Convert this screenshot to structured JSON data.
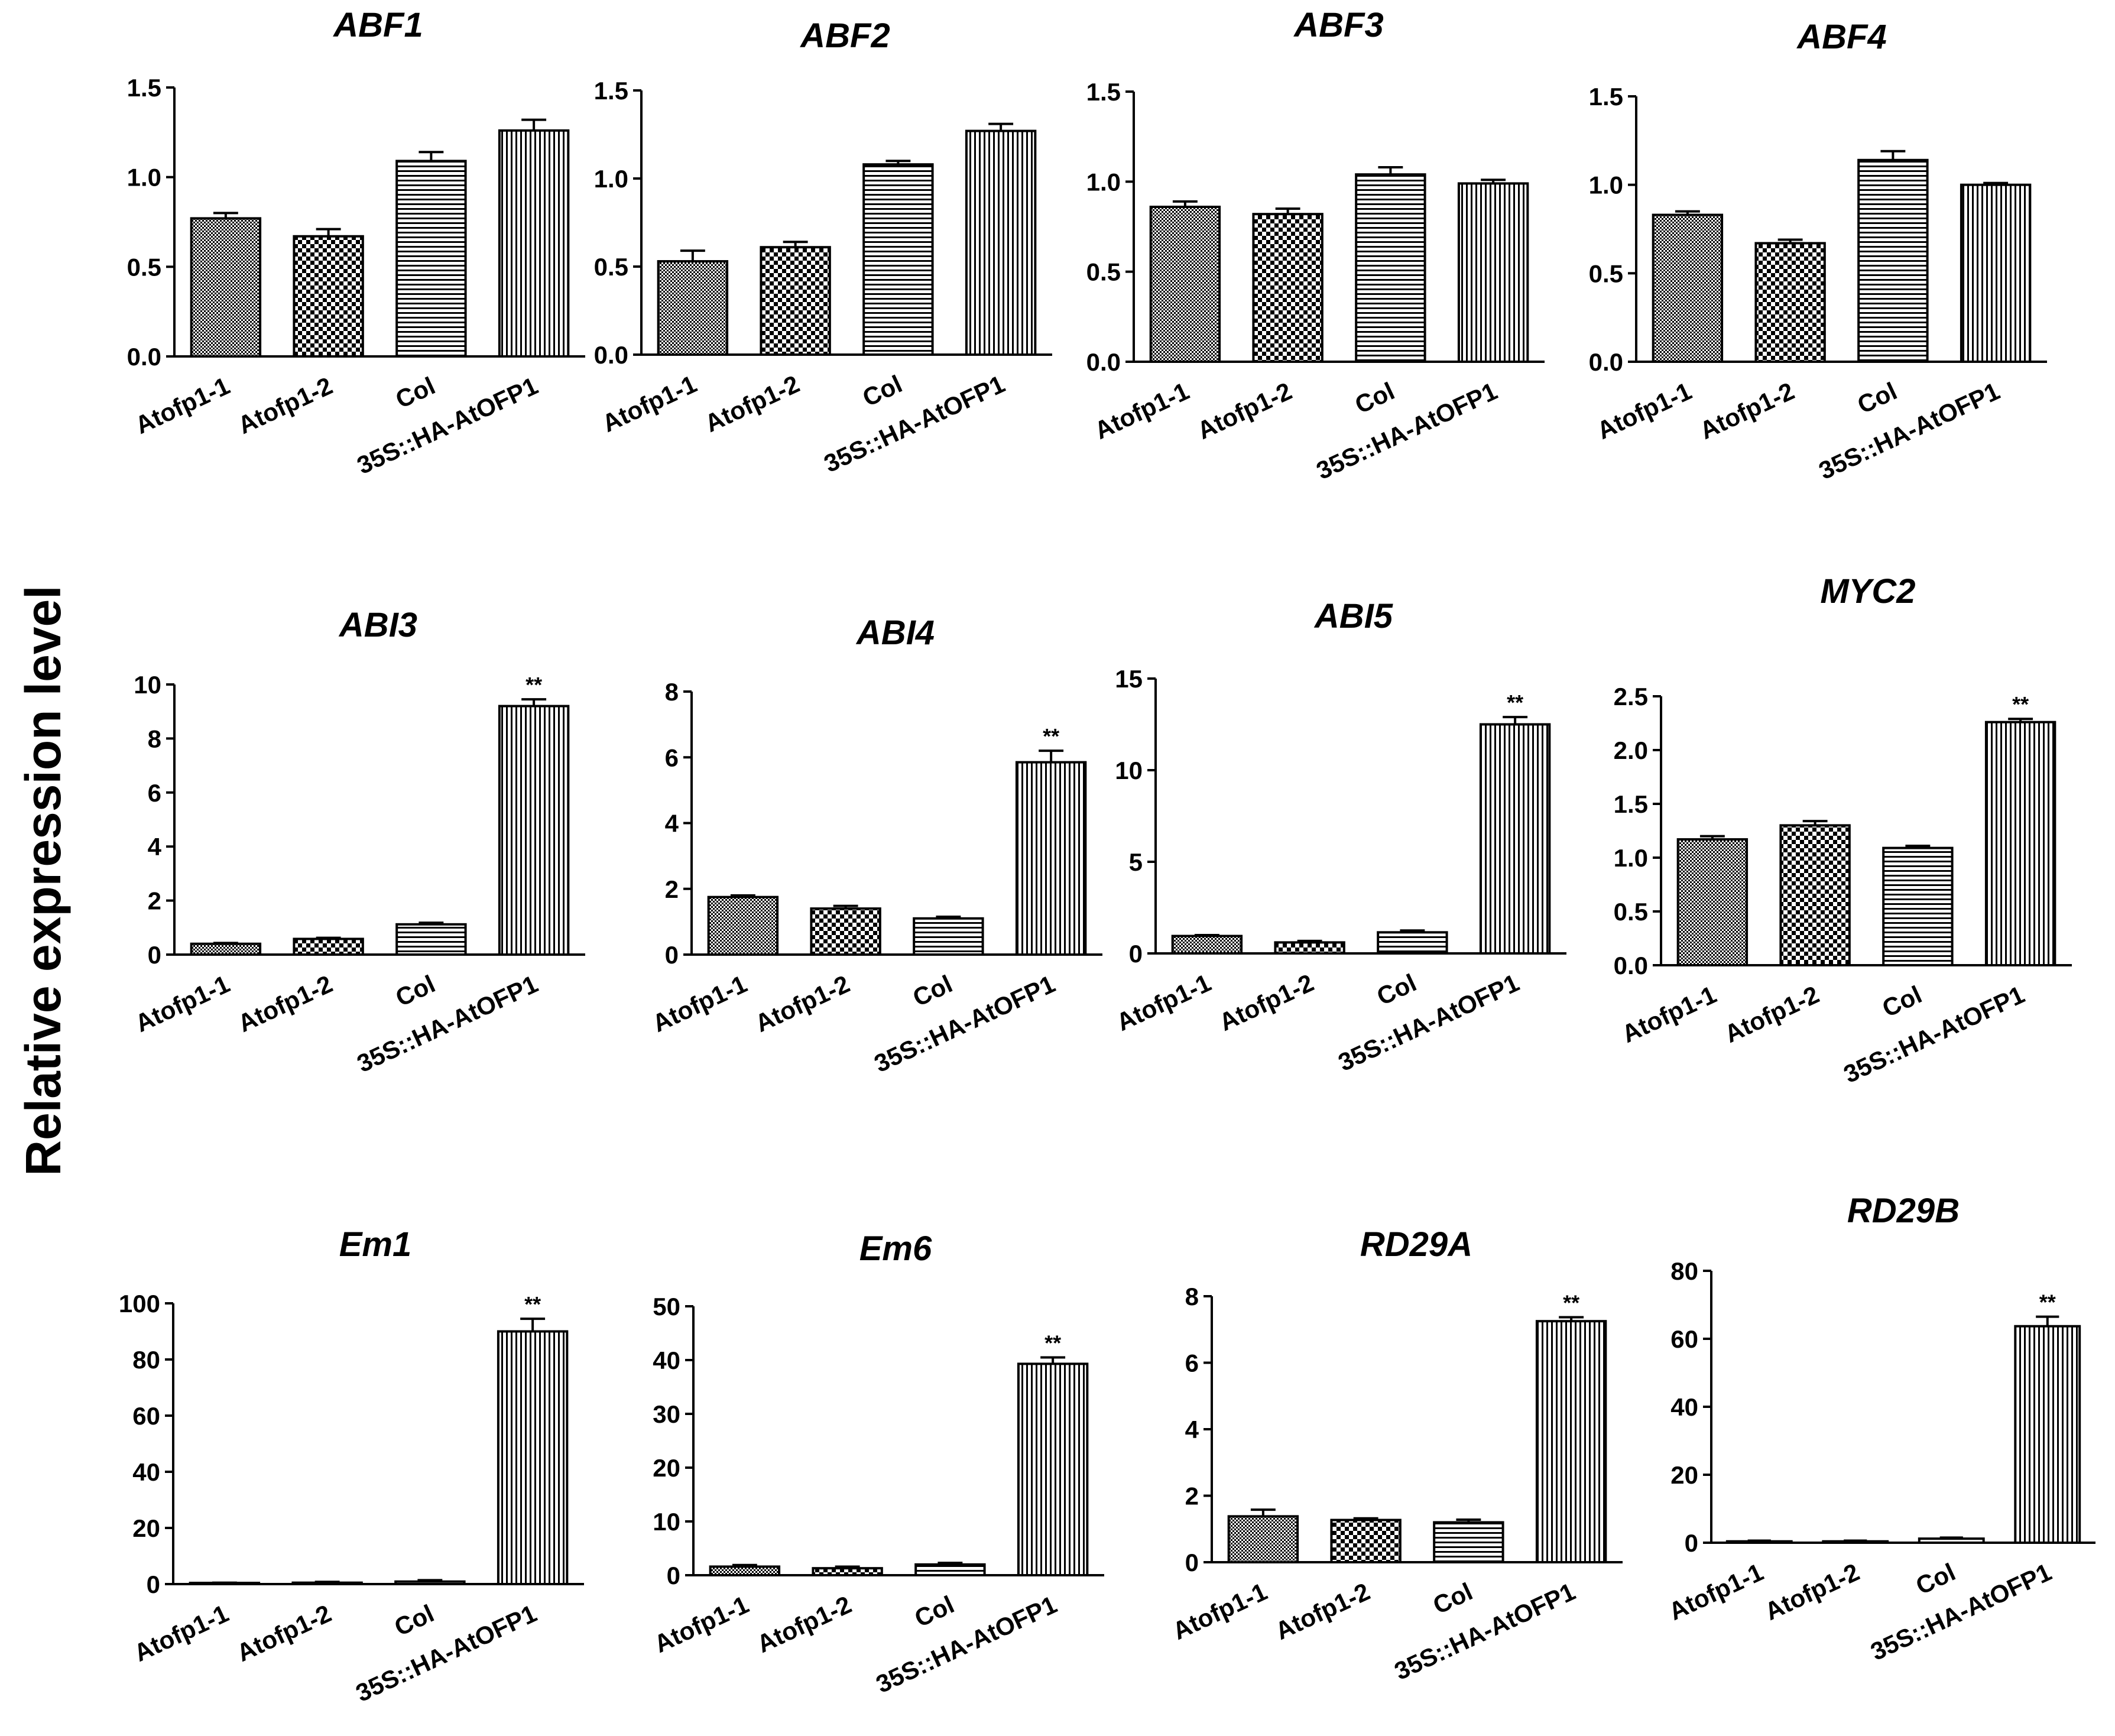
{
  "figure": {
    "ylabel": "Relative expression level",
    "categories": [
      "Atofp1-1",
      "Atofp1-2",
      "Col",
      "35S::HA-AtOFP1"
    ],
    "patterns": [
      "dense-dots",
      "checker",
      "horizontal-lines",
      "vertical-lines"
    ],
    "colors": {
      "ink": "#000000",
      "background": "#ffffff"
    }
  },
  "chart_data": [
    {
      "type": "bar",
      "title": "ABF1",
      "categories": [
        "Atofp1-1",
        "Atofp1-2",
        "Col",
        "35S::HA-AtOFP1"
      ],
      "values": [
        0.77,
        0.67,
        1.09,
        1.26
      ],
      "errors": [
        0.03,
        0.04,
        0.05,
        0.06
      ],
      "significance": [
        "",
        "",
        "",
        ""
      ],
      "ylim": [
        0,
        1.5
      ],
      "yticks": [
        0.0,
        0.5,
        1.0,
        1.5
      ],
      "ytick_labels": [
        "0.0",
        "0.5",
        "1.0",
        "1.5"
      ],
      "xlabel": "",
      "ylabel": "Relative expression level"
    },
    {
      "type": "bar",
      "title": "ABF2",
      "categories": [
        "Atofp1-1",
        "Atofp1-2",
        "Col",
        "35S::HA-AtOFP1"
      ],
      "values": [
        0.53,
        0.61,
        1.08,
        1.27
      ],
      "errors": [
        0.06,
        0.03,
        0.02,
        0.04
      ],
      "significance": [
        "",
        "",
        "",
        ""
      ],
      "ylim": [
        0,
        1.5
      ],
      "yticks": [
        0.0,
        0.5,
        1.0,
        1.5
      ],
      "ytick_labels": [
        "0.0",
        "0.5",
        "1.0",
        "1.5"
      ],
      "xlabel": "",
      "ylabel": "Relative expression level"
    },
    {
      "type": "bar",
      "title": "ABF3",
      "categories": [
        "Atofp1-1",
        "Atofp1-2",
        "Col",
        "35S::HA-AtOFP1"
      ],
      "values": [
        0.86,
        0.82,
        1.04,
        0.99
      ],
      "errors": [
        0.03,
        0.03,
        0.04,
        0.02
      ],
      "significance": [
        "",
        "",
        "",
        ""
      ],
      "ylim": [
        0,
        1.5
      ],
      "yticks": [
        0.0,
        0.5,
        1.0,
        1.5
      ],
      "ytick_labels": [
        "0.0",
        "0.5",
        "1.0",
        "1.5"
      ],
      "xlabel": "",
      "ylabel": "Relative expression level"
    },
    {
      "type": "bar",
      "title": "ABF4",
      "categories": [
        "Atofp1-1",
        "Atofp1-2",
        "Col",
        "35S::HA-AtOFP1"
      ],
      "values": [
        0.83,
        0.67,
        1.14,
        1.0
      ],
      "errors": [
        0.02,
        0.02,
        0.05,
        0.01
      ],
      "significance": [
        "",
        "",
        "",
        ""
      ],
      "ylim": [
        0,
        1.5
      ],
      "yticks": [
        0.0,
        0.5,
        1.0,
        1.5
      ],
      "ytick_labels": [
        "0.0",
        "0.5",
        "1.0",
        "1.5"
      ],
      "xlabel": "",
      "ylabel": "Relative expression level"
    },
    {
      "type": "bar",
      "title": "ABI3",
      "categories": [
        "Atofp1-1",
        "Atofp1-2",
        "Col",
        "35S::HA-AtOFP1"
      ],
      "values": [
        0.4,
        0.58,
        1.12,
        9.2
      ],
      "errors": [
        0.03,
        0.04,
        0.06,
        0.25
      ],
      "significance": [
        "",
        "",
        "",
        "**"
      ],
      "ylim": [
        0,
        10
      ],
      "yticks": [
        0,
        2,
        4,
        6,
        8,
        10
      ],
      "ytick_labels": [
        "0",
        "2",
        "4",
        "6",
        "8",
        "10"
      ],
      "xlabel": "",
      "ylabel": "Relative expression level"
    },
    {
      "type": "bar",
      "title": "ABI4",
      "categories": [
        "Atofp1-1",
        "Atofp1-2",
        "Col",
        "35S::HA-AtOFP1"
      ],
      "values": [
        1.75,
        1.4,
        1.1,
        5.85
      ],
      "errors": [
        0.05,
        0.08,
        0.05,
        0.35
      ],
      "significance": [
        "",
        "",
        "",
        "**"
      ],
      "ylim": [
        0,
        8
      ],
      "yticks": [
        0,
        2,
        4,
        6,
        8
      ],
      "ytick_labels": [
        "0",
        "2",
        "4",
        "6",
        "8"
      ],
      "xlabel": "",
      "ylabel": "Relative expression level"
    },
    {
      "type": "bar",
      "title": "ABI5",
      "categories": [
        "Atofp1-1",
        "Atofp1-2",
        "Col",
        "35S::HA-AtOFP1"
      ],
      "values": [
        0.95,
        0.6,
        1.15,
        12.5
      ],
      "errors": [
        0.05,
        0.08,
        0.1,
        0.4
      ],
      "significance": [
        "",
        "",
        "",
        "**"
      ],
      "ylim": [
        0,
        15
      ],
      "yticks": [
        0,
        5,
        10,
        15
      ],
      "ytick_labels": [
        "0",
        "5",
        "10",
        "15"
      ],
      "xlabel": "",
      "ylabel": "Relative expression level"
    },
    {
      "type": "bar",
      "title": "MYC2",
      "categories": [
        "Atofp1-1",
        "Atofp1-2",
        "Col",
        "35S::HA-AtOFP1"
      ],
      "values": [
        1.17,
        1.3,
        1.09,
        2.26
      ],
      "errors": [
        0.03,
        0.04,
        0.02,
        0.03
      ],
      "significance": [
        "",
        "",
        "",
        "**"
      ],
      "ylim": [
        0,
        2.5
      ],
      "yticks": [
        0.0,
        0.5,
        1.0,
        1.5,
        2.0,
        2.5
      ],
      "ytick_labels": [
        "0.0",
        "0.5",
        "1.0",
        "1.5",
        "2.0",
        "2.5"
      ],
      "xlabel": "",
      "ylabel": "Relative expression level"
    },
    {
      "type": "bar",
      "title": "Em1",
      "categories": [
        "Atofp1-1",
        "Atofp1-2",
        "Col",
        "35S::HA-AtOFP1"
      ],
      "values": [
        0.3,
        0.5,
        0.9,
        90
      ],
      "errors": [
        0.2,
        0.3,
        0.5,
        4.5
      ],
      "significance": [
        "",
        "",
        "",
        "**"
      ],
      "ylim": [
        0,
        100
      ],
      "yticks": [
        0,
        20,
        40,
        60,
        80,
        100
      ],
      "ytick_labels": [
        "0",
        "20",
        "40",
        "60",
        "80",
        "100"
      ],
      "xlabel": "",
      "ylabel": "Relative expression level"
    },
    {
      "type": "bar",
      "title": "Em6",
      "categories": [
        "Atofp1-1",
        "Atofp1-2",
        "Col",
        "35S::HA-AtOFP1"
      ],
      "values": [
        1.6,
        1.3,
        2.0,
        39.3
      ],
      "errors": [
        0.3,
        0.3,
        0.3,
        1.2
      ],
      "significance": [
        "",
        "",
        "",
        "**"
      ],
      "ylim": [
        0,
        50
      ],
      "yticks": [
        0,
        10,
        20,
        30,
        40,
        50
      ],
      "ytick_labels": [
        "0",
        "10",
        "20",
        "30",
        "40",
        "50"
      ],
      "xlabel": "",
      "ylabel": "Relative expression level"
    },
    {
      "type": "bar",
      "title": "RD29A",
      "categories": [
        "Atofp1-1",
        "Atofp1-2",
        "Col",
        "35S::HA-AtOFP1"
      ],
      "values": [
        1.38,
        1.27,
        1.2,
        7.25
      ],
      "errors": [
        0.2,
        0.05,
        0.08,
        0.12
      ],
      "significance": [
        "",
        "",
        "",
        "**"
      ],
      "ylim": [
        0,
        8
      ],
      "yticks": [
        0,
        2,
        4,
        6,
        8
      ],
      "ytick_labels": [
        "0",
        "2",
        "4",
        "6",
        "8"
      ],
      "xlabel": "",
      "ylabel": "Relative expression level"
    },
    {
      "type": "bar",
      "title": "RD29B",
      "categories": [
        "Atofp1-1",
        "Atofp1-2",
        "Col",
        "35S::HA-AtOFP1"
      ],
      "values": [
        0.4,
        0.4,
        1.2,
        63.7
      ],
      "errors": [
        0.2,
        0.2,
        0.3,
        2.8
      ],
      "significance": [
        "",
        "",
        "",
        "**"
      ],
      "ylim": [
        0,
        80
      ],
      "yticks": [
        0,
        20,
        40,
        60,
        80
      ],
      "ytick_labels": [
        "0",
        "20",
        "40",
        "60",
        "80"
      ],
      "xlabel": "",
      "ylabel": "Relative expression level"
    }
  ]
}
